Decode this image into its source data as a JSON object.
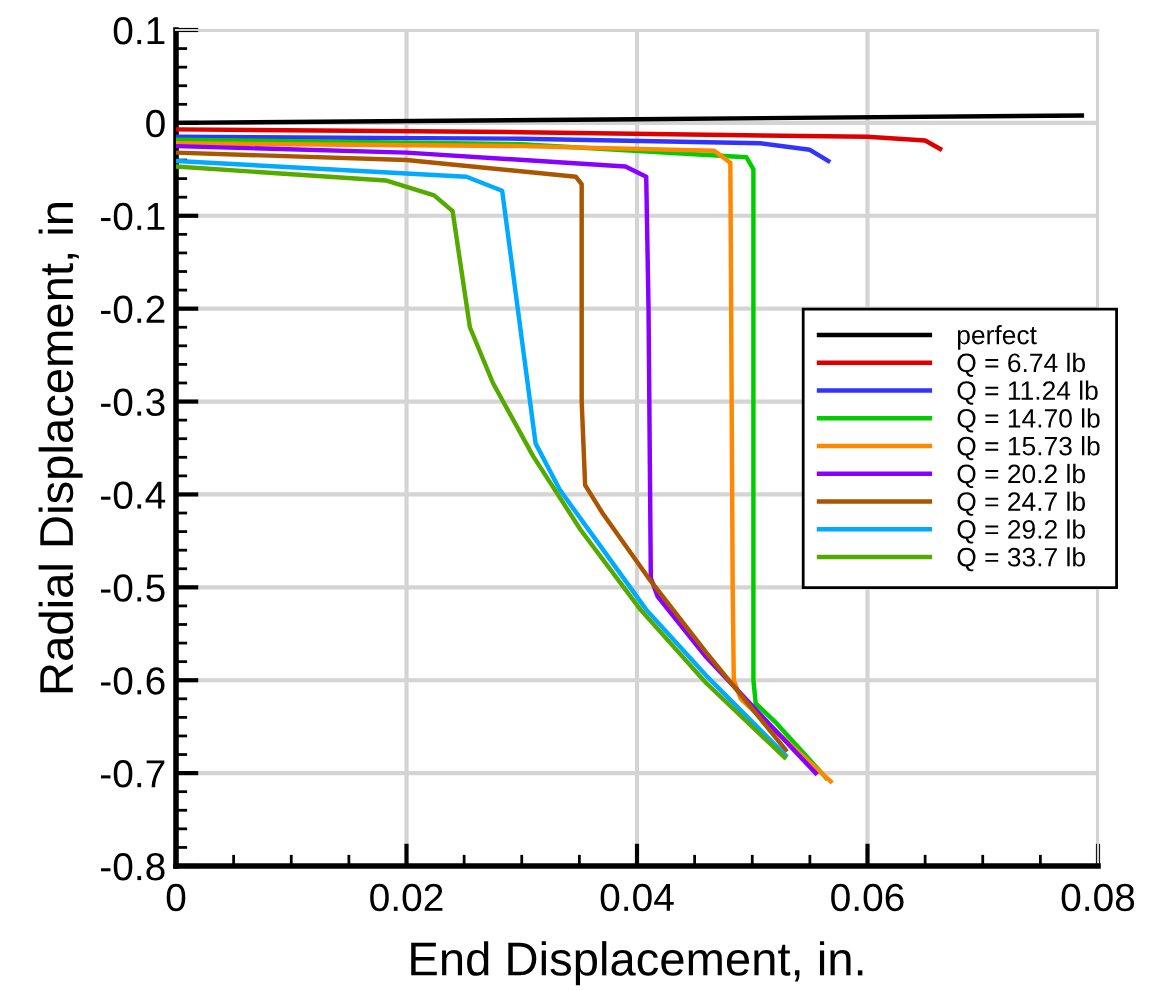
{
  "chart_data": {
    "type": "line",
    "xlabel": "End Displacement, in.",
    "ylabel": "Radial Displacement, in",
    "xlim": [
      0,
      0.08
    ],
    "xticks": [
      0,
      0.02,
      0.04,
      0.06,
      0.08
    ],
    "ylim": [
      -0.8,
      0.1
    ],
    "yticks": [
      -0.8,
      -0.7,
      -0.6,
      -0.5,
      -0.4,
      -0.3,
      -0.2,
      -0.1,
      0,
      0.1
    ],
    "grid": true,
    "legend": "right",
    "marker": "none",
    "line_style": "solid",
    "series": [
      {
        "name": "perfect",
        "color": "#000000",
        "x": [
          0,
          0.04,
          0.0786
        ],
        "values": [
          0,
          0.004,
          0.008
        ]
      },
      {
        "name": "Q = 6.74 lb",
        "color": "#dd0000",
        "x": [
          0,
          0.03,
          0.06,
          0.065,
          0.0663
        ],
        "values": [
          -0.007,
          -0.01,
          -0.015,
          -0.019,
          -0.028
        ]
      },
      {
        "name": "Q = 11.24 lb",
        "color": "#3333ff",
        "x": [
          0,
          0.03,
          0.0507,
          0.055,
          0.0566
        ],
        "values": [
          -0.015,
          -0.017,
          -0.022,
          -0.029,
          -0.041
        ]
      },
      {
        "name": "Q = 14.70 lb",
        "color": "#00cc00",
        "x": [
          0,
          0.03,
          0.0495,
          0.0501,
          0.0501,
          0.0503,
          0.052,
          0.0564
        ],
        "values": [
          -0.018,
          -0.023,
          -0.037,
          -0.05,
          -0.6,
          -0.625,
          -0.645,
          -0.705
        ]
      },
      {
        "name": "Q = 15.73 lb",
        "color": "#ff8800",
        "x": [
          0,
          0.03,
          0.0467,
          0.0481,
          0.0483,
          0.0484,
          0.049,
          0.0568
        ],
        "values": [
          -0.022,
          -0.025,
          -0.03,
          -0.043,
          -0.5,
          -0.6,
          -0.62,
          -0.709
        ]
      },
      {
        "name": "Q = 20.2 lb",
        "color": "#8800ff",
        "x": [
          0,
          0.02,
          0.039,
          0.0408,
          0.041,
          0.0412,
          0.0418,
          0.046,
          0.0555
        ],
        "values": [
          -0.025,
          -0.032,
          -0.047,
          -0.058,
          -0.2,
          -0.49,
          -0.51,
          -0.575,
          -0.7
        ]
      },
      {
        "name": "Q = 24.7 lb",
        "color": "#aa5500",
        "x": [
          0,
          0.02,
          0.0347,
          0.0352,
          0.0352,
          0.0355,
          0.037,
          0.041,
          0.046,
          0.0529
        ],
        "values": [
          -0.032,
          -0.04,
          -0.058,
          -0.066,
          -0.3,
          -0.39,
          -0.42,
          -0.49,
          -0.57,
          -0.675
        ]
      },
      {
        "name": "Q = 29.2 lb",
        "color": "#00aaff",
        "x": [
          0,
          0.0252,
          0.0283,
          0.0312,
          0.0333,
          0.0365,
          0.0408,
          0.046,
          0.0529
        ],
        "values": [
          -0.041,
          -0.058,
          -0.073,
          -0.345,
          -0.395,
          -0.45,
          -0.524,
          -0.595,
          -0.681
        ]
      },
      {
        "name": "Q = 33.7 lb",
        "color": "#55aa00",
        "x": [
          0,
          0.0182,
          0.0224,
          0.024,
          0.0255,
          0.0275,
          0.031,
          0.0351,
          0.0403,
          0.046,
          0.0528
        ],
        "values": [
          -0.047,
          -0.062,
          -0.078,
          -0.095,
          -0.22,
          -0.28,
          -0.359,
          -0.438,
          -0.524,
          -0.603,
          -0.683
        ]
      }
    ]
  }
}
